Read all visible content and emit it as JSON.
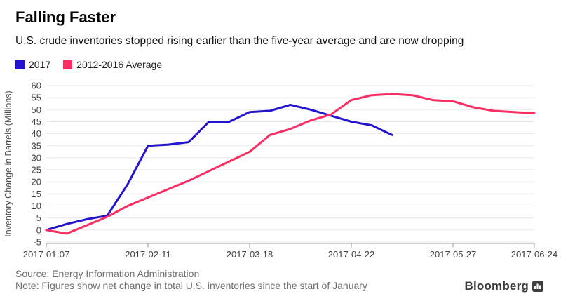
{
  "header": {
    "title": "Falling Faster",
    "subtitle": "U.S. crude inventories stopped rising earlier than the five-year average and are now dropping"
  },
  "legend": [
    {
      "label": "2017",
      "color": "#2414cf"
    },
    {
      "label": "2012-2016 Average",
      "color": "#fa2e62"
    }
  ],
  "chart_data": {
    "type": "line",
    "title": "Falling Faster",
    "xlabel": "",
    "ylabel": "Inventory Change in Barrels (Millions)",
    "ylim": [
      -5,
      60
    ],
    "yticks": [
      60,
      55,
      50,
      45,
      40,
      35,
      30,
      25,
      20,
      15,
      10,
      5,
      0,
      -5
    ],
    "x_unit": "weeks since 2017-01-07",
    "weeks_total": 25,
    "xticks": [
      {
        "week": 0,
        "label": "2017-01-07"
      },
      {
        "week": 5,
        "label": "2017-02-11"
      },
      {
        "week": 10,
        "label": "2017-03-18"
      },
      {
        "week": 15,
        "label": "2017-04-22"
      },
      {
        "week": 20,
        "label": "2017-05-27"
      },
      {
        "week": 24,
        "label": "2017-06-24"
      }
    ],
    "grid": "horizontal",
    "legend_position": "top-left",
    "colors": {
      "grid": "#e8e8e8",
      "axis": "#9a9a9a",
      "tick_text": "#424242",
      "axis_title": "#4f4f4f"
    },
    "series": [
      {
        "name": "2017",
        "color": "#2414cf",
        "values": [
          0,
          2.5,
          4.5,
          6,
          19,
          35,
          35.5,
          36.5,
          45,
          45,
          49,
          49.5,
          52,
          50,
          47.5,
          45,
          43.5,
          39.5
        ]
      },
      {
        "name": "2012-2016 Average",
        "color": "#fa2e62",
        "values": [
          0,
          -1.5,
          2,
          5.5,
          10,
          13.5,
          17,
          20.5,
          24.5,
          28.5,
          32.5,
          39.5,
          42,
          45.5,
          48,
          54,
          56,
          56.5,
          56,
          54,
          53.5,
          51,
          49.5,
          49,
          48.5
        ]
      }
    ]
  },
  "footer": {
    "source": "Source: Energy Information Administration",
    "note": "Note: Figures show net change in total U.S. inventories since the start of January",
    "brand": "Bloomberg"
  }
}
